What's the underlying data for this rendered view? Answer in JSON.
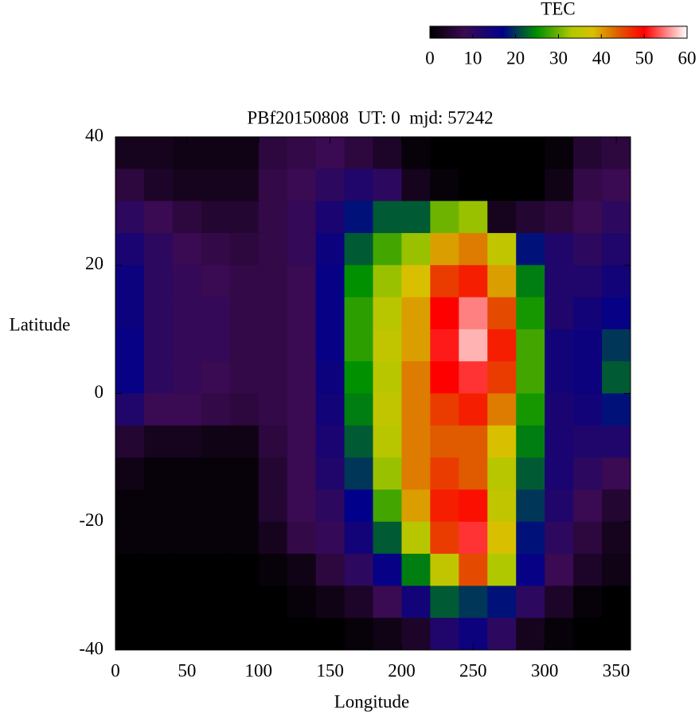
{
  "chart_data": {
    "type": "heatmap",
    "title": "PBf20150808  UT: 0  mjd: 57242",
    "x_label": "Longitude",
    "y_label": "Latitude",
    "colorbar_label": "TEC",
    "xlim": [
      0,
      360
    ],
    "xticks": [
      0,
      50,
      100,
      150,
      200,
      250,
      300,
      350
    ],
    "ylim": [
      -40,
      40
    ],
    "yticks": [
      -40,
      -20,
      0,
      20,
      40
    ],
    "zlim": [
      0,
      60
    ],
    "zticks": [
      0,
      10,
      20,
      30,
      40,
      50,
      60
    ],
    "colormap": [
      [
        0,
        "#000000"
      ],
      [
        8,
        "#3a0a52"
      ],
      [
        17,
        "#00008b"
      ],
      [
        25,
        "#009000"
      ],
      [
        33,
        "#b0c800"
      ],
      [
        38,
        "#d8c000"
      ],
      [
        44,
        "#e05a00"
      ],
      [
        50,
        "#ff0000"
      ],
      [
        60,
        "#ffffff"
      ]
    ],
    "x": [
      10,
      30,
      50,
      70,
      90,
      110,
      130,
      150,
      170,
      190,
      210,
      230,
      250,
      270,
      290,
      310,
      330,
      350
    ],
    "y": [
      37.5,
      32.5,
      27.5,
      22.5,
      17.5,
      12.5,
      7.5,
      2.5,
      -2.5,
      -7.5,
      -12.5,
      -17.5,
      -22.5,
      -27.5,
      -32.5,
      -37.5
    ],
    "z": [
      [
        3,
        3,
        2,
        2,
        2,
        6,
        7,
        8,
        6,
        4,
        1,
        0,
        0,
        0,
        0,
        1,
        5,
        6
      ],
      [
        6,
        4,
        3,
        3,
        3,
        7,
        8,
        10,
        12,
        10,
        3,
        1,
        0,
        0,
        0,
        2,
        7,
        8
      ],
      [
        10,
        8,
        6,
        5,
        5,
        7,
        9,
        13,
        18,
        22,
        22,
        30,
        32,
        3,
        5,
        6,
        8,
        10
      ],
      [
        13,
        10,
        8,
        7,
        6,
        7,
        9,
        15,
        22,
        28,
        32,
        40,
        42,
        35,
        18,
        12,
        10,
        12
      ],
      [
        15,
        10,
        9,
        8,
        7,
        7,
        8,
        16,
        25,
        32,
        38,
        46,
        48,
        40,
        24,
        12,
        12,
        14
      ],
      [
        15,
        10,
        9,
        9,
        7,
        7,
        8,
        16,
        27,
        34,
        40,
        50,
        55,
        45,
        26,
        12,
        14,
        16
      ],
      [
        16,
        10,
        9,
        9,
        7,
        7,
        8,
        16,
        27,
        35,
        40,
        51,
        57,
        48,
        28,
        14,
        15,
        20
      ],
      [
        16,
        10,
        9,
        8,
        7,
        7,
        8,
        15,
        25,
        34,
        42,
        50,
        52,
        46,
        28,
        14,
        15,
        22
      ],
      [
        12,
        8,
        8,
        7,
        6,
        7,
        8,
        14,
        24,
        35,
        42,
        46,
        48,
        42,
        26,
        13,
        14,
        18
      ],
      [
        5,
        3,
        3,
        2,
        2,
        6,
        8,
        13,
        22,
        34,
        42,
        44,
        44,
        38,
        24,
        13,
        12,
        12
      ],
      [
        2,
        1,
        1,
        1,
        1,
        5,
        8,
        12,
        20,
        32,
        42,
        46,
        44,
        34,
        22,
        13,
        10,
        8
      ],
      [
        1,
        1,
        1,
        1,
        1,
        5,
        8,
        10,
        17,
        28,
        40,
        48,
        49,
        35,
        20,
        12,
        8,
        5
      ],
      [
        1,
        1,
        1,
        1,
        1,
        3,
        7,
        9,
        14,
        22,
        34,
        46,
        52,
        38,
        18,
        10,
        6,
        3
      ],
      [
        0,
        0,
        0,
        0,
        0,
        1,
        2,
        6,
        10,
        16,
        24,
        35,
        45,
        33,
        16,
        8,
        4,
        2
      ],
      [
        0,
        0,
        0,
        0,
        0,
        0,
        1,
        2,
        4,
        8,
        14,
        22,
        20,
        18,
        10,
        4,
        1,
        0
      ],
      [
        0,
        0,
        0,
        0,
        0,
        0,
        0,
        0,
        1,
        2,
        4,
        12,
        15,
        10,
        3,
        1,
        0,
        0
      ]
    ]
  }
}
